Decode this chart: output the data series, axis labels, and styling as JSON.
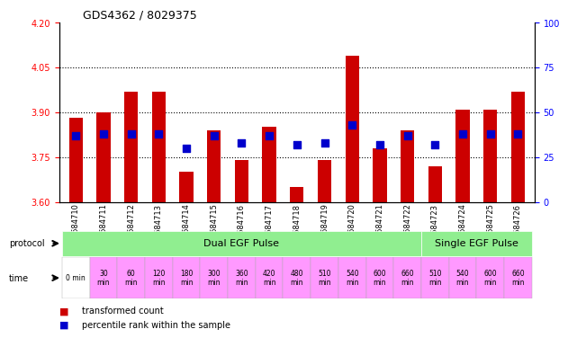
{
  "title": "GDS4362 / 8029375",
  "samples": [
    "GSM684710",
    "GSM684711",
    "GSM684712",
    "GSM684713",
    "GSM684714",
    "GSM684715",
    "GSM684716",
    "GSM684717",
    "GSM684718",
    "GSM684719",
    "GSM684720",
    "GSM684721",
    "GSM684722",
    "GSM684723",
    "GSM684724",
    "GSM684725",
    "GSM684726"
  ],
  "transformed_count": [
    3.88,
    3.9,
    3.97,
    3.97,
    3.7,
    3.84,
    3.74,
    3.85,
    3.65,
    3.74,
    4.09,
    3.78,
    3.84,
    3.72,
    3.91,
    3.91,
    3.97
  ],
  "percentile_rank": [
    37,
    38,
    38,
    38,
    30,
    37,
    33,
    37,
    32,
    33,
    43,
    32,
    37,
    32,
    38,
    38,
    38
  ],
  "ylim": [
    3.6,
    4.2
  ],
  "yticks_left": [
    3.6,
    3.75,
    3.9,
    4.05,
    4.2
  ],
  "yticks_right": [
    0,
    25,
    50,
    75,
    100
  ],
  "bar_color": "#cc0000",
  "dot_color": "#0000cc",
  "grid_color": "#000000",
  "bg_color": "#ffffff",
  "sample_bg": "#d3d3d3",
  "protocol_row_color": "#90ee90",
  "protocol_row_color2": "#90ee90",
  "time_row_color": "#ff99ff",
  "protocol1_label": "Dual EGF Pulse",
  "protocol2_label": "Single EGF Pulse",
  "protocol1_samples": 13,
  "protocol2_samples": 4,
  "time_labels": [
    "0 min",
    "30\nmin",
    "60\nmin",
    "120\nmin",
    "180\nmin",
    "300\nmin",
    "360\nmin",
    "420\nmin",
    "480\nmin",
    "510\nmin",
    "540\nmin",
    "600\nmin",
    "660\nmin",
    "510\nmin",
    "540\nmin",
    "600\nmin",
    "660\nmin"
  ],
  "legend_red": "transformed count",
  "legend_blue": "percentile rank within the sample",
  "bar_width": 0.5,
  "dot_size": 40
}
